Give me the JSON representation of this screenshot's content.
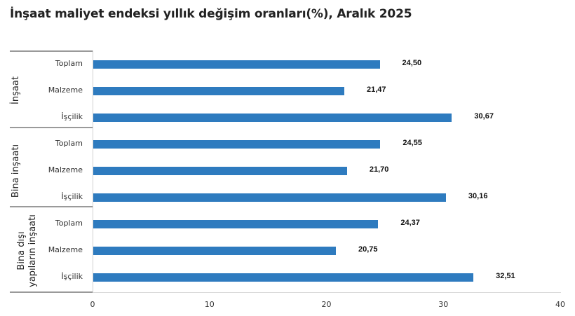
{
  "title": "İnşaat maliyet endeksi yıllık değişim oranları(%), Aralık 2025",
  "chart_data": {
    "type": "bar",
    "orientation": "horizontal",
    "title": "İnşaat maliyet endeksi yıllık değişim oranları(%), Aralık 2025",
    "xlabel": "",
    "ylabel": "",
    "xlim": [
      0,
      40
    ],
    "x_ticks": [
      "0",
      "10",
      "20",
      "30",
      "40"
    ],
    "grid": false,
    "legend": null,
    "color": "#2e7bbf",
    "groups": [
      {
        "name": "İnşaat",
        "categories": [
          "Toplam",
          "Malzeme",
          "İşçilik"
        ],
        "values": [
          24.5,
          21.47,
          30.67
        ],
        "labels": [
          "24,50",
          "21,47",
          "30,67"
        ]
      },
      {
        "name": "Bina inşaatı",
        "categories": [
          "Toplam",
          "Malzeme",
          "İşçilik"
        ],
        "values": [
          24.55,
          21.7,
          30.16
        ],
        "labels": [
          "24,55",
          "21,70",
          "30,16"
        ]
      },
      {
        "name": "Bina dışı yapıların inşaatı",
        "name_lines": [
          "Bina dışı",
          "yapıların inşaatı"
        ],
        "categories": [
          "Toplam",
          "Malzeme",
          "İşçilik"
        ],
        "values": [
          24.37,
          20.75,
          32.51
        ],
        "labels": [
          "24,37",
          "20,75",
          "32,51"
        ]
      }
    ]
  }
}
